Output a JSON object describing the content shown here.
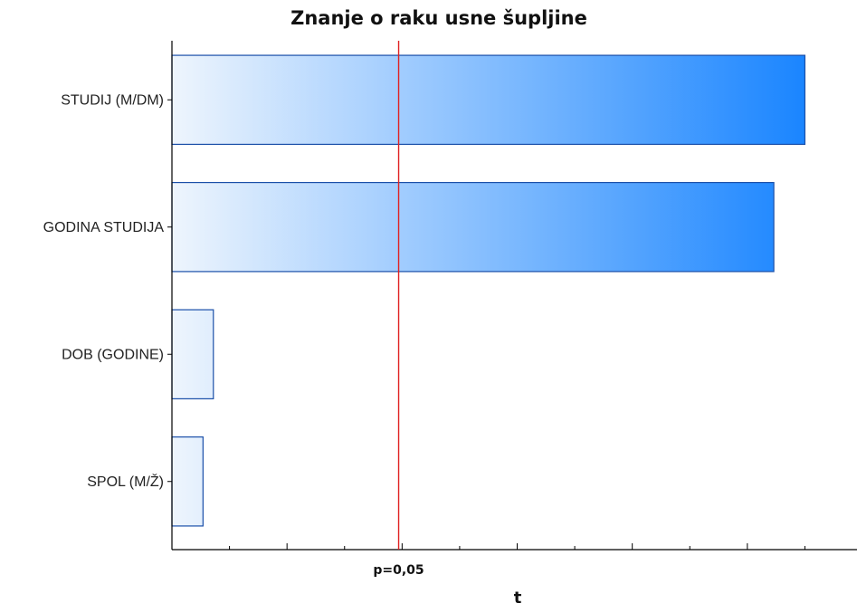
{
  "chart_data": {
    "type": "bar",
    "orientation": "horizontal",
    "title": "Znanje o raku usne šupljine",
    "xlabel": "t",
    "ylabel": "",
    "categories": [
      "STUDIJ (M/DM)",
      "GODINA STUDIJA",
      "DOB (GODINE)",
      "SPOL (M/Ž)"
    ],
    "values": [
      5.5,
      5.23,
      0.36,
      0.27
    ],
    "xlim": [
      0,
      6
    ],
    "reference_line": {
      "value": 1.97,
      "label": "p=0,05",
      "color": "#e02020"
    },
    "bar_gradient": {
      "from": "#eef5fd",
      "to": "#1a85ff"
    },
    "bar_border": "#1a4fa8",
    "grid": false
  }
}
